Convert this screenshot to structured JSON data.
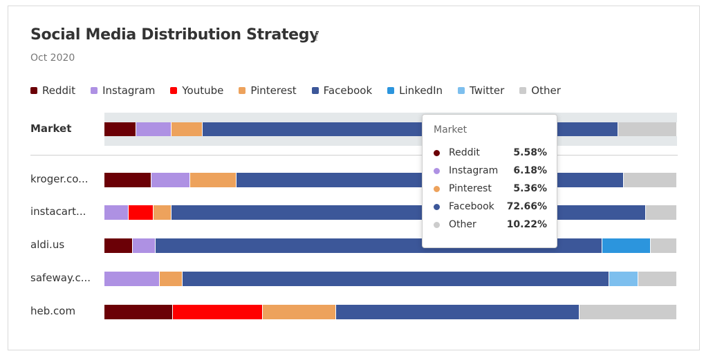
{
  "header": {
    "title": "Social Media Distribution Strategy",
    "info_icon": "i",
    "subtitle": "Oct 2020"
  },
  "colors": {
    "Reddit": "#6b0006",
    "Instagram": "#ae91e3",
    "Youtube": "#ff0000",
    "Pinterest": "#eda25c",
    "Facebook": "#3c5799",
    "LinkedIn": "#2c95dd",
    "Twitter": "#7dbfee",
    "Other": "#cccccc"
  },
  "legend": [
    "Reddit",
    "Instagram",
    "Youtube",
    "Pinterest",
    "Facebook",
    "LinkedIn",
    "Twitter",
    "Other"
  ],
  "chart_data": {
    "type": "bar",
    "orientation": "horizontal",
    "stacked": true,
    "normalized": true,
    "title": "Social Media Distribution Strategy",
    "subtitle": "Oct 2020",
    "legend_position": "top-left",
    "categories": [
      "Market",
      "kroger.co...",
      "instacart...",
      "aldi.us",
      "safeway.c...",
      "heb.com"
    ],
    "series": [
      {
        "name": "Reddit",
        "values": [
          5.58,
          8.2,
          0,
          4.9,
          0,
          12.0
        ]
      },
      {
        "name": "Instagram",
        "values": [
          6.18,
          6.8,
          4.2,
          4.0,
          9.7,
          0
        ]
      },
      {
        "name": "Youtube",
        "values": [
          0,
          0,
          4.4,
          0,
          0,
          15.6
        ]
      },
      {
        "name": "Pinterest",
        "values": [
          5.36,
          8.1,
          3.1,
          0,
          3.9,
          12.9
        ]
      },
      {
        "name": "Facebook",
        "values": [
          72.66,
          67.6,
          82.9,
          78.0,
          74.6,
          42.5
        ]
      },
      {
        "name": "LinkedIn",
        "values": [
          0,
          0,
          0,
          8.5,
          0,
          0
        ]
      },
      {
        "name": "Twitter",
        "values": [
          0,
          0,
          0,
          0,
          5.0,
          0
        ]
      },
      {
        "name": "Other",
        "values": [
          10.22,
          9.3,
          5.4,
          4.6,
          6.8,
          17.0
        ]
      }
    ]
  },
  "tooltip": {
    "title": "Market",
    "rows": [
      {
        "name": "Reddit",
        "value": "5.58%"
      },
      {
        "name": "Instagram",
        "value": "6.18%"
      },
      {
        "name": "Pinterest",
        "value": "5.36%"
      },
      {
        "name": "Facebook",
        "value": "72.66%"
      },
      {
        "name": "Other",
        "value": "10.22%"
      }
    ]
  }
}
